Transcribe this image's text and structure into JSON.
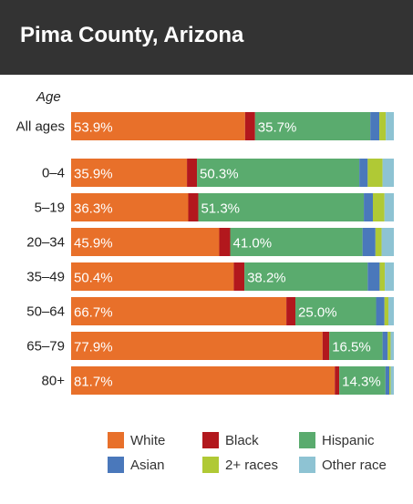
{
  "page": {
    "title": "Pima County, Arizona"
  },
  "chart_data": {
    "type": "bar",
    "stacked": true,
    "orientation": "horizontal",
    "percent": true,
    "ylabel": "Age",
    "categories": [
      "All ages",
      "0–4",
      "5–19",
      "20–34",
      "35–49",
      "50–64",
      "65–79",
      "80+"
    ],
    "series": [
      {
        "name": "White",
        "color": "#e8702a",
        "values": [
          53.9,
          35.9,
          36.3,
          45.9,
          50.4,
          66.7,
          77.9,
          81.7
        ],
        "labels": [
          "53.9%",
          "35.9%",
          "36.3%",
          "45.9%",
          "50.4%",
          "66.7%",
          "77.9%",
          "81.7%"
        ]
      },
      {
        "name": "Black",
        "color": "#b2181d",
        "values": [
          3.1,
          3.1,
          3.1,
          3.4,
          3.3,
          2.8,
          2.1,
          1.4
        ]
      },
      {
        "name": "Hispanic",
        "color": "#5aab6e",
        "values": [
          35.7,
          50.3,
          51.3,
          41.0,
          38.2,
          25.0,
          16.5,
          14.3
        ],
        "labels": [
          "35.7%",
          "50.3%",
          "51.3%",
          "41.0%",
          "38.2%",
          "25.0%",
          "16.5%",
          "14.3%"
        ]
      },
      {
        "name": "Asian",
        "color": "#4a78bb",
        "values": [
          2.8,
          2.6,
          2.8,
          4.0,
          3.7,
          2.6,
          1.6,
          1.2
        ]
      },
      {
        "name": "2+ races",
        "color": "#b0c935",
        "values": [
          2.0,
          4.6,
          3.6,
          1.9,
          1.6,
          1.2,
          0.9,
          0.4
        ]
      },
      {
        "name": "Other race",
        "color": "#8ec3d3",
        "values": [
          2.5,
          3.5,
          2.9,
          3.8,
          2.8,
          1.7,
          1.0,
          1.0
        ]
      }
    ]
  }
}
